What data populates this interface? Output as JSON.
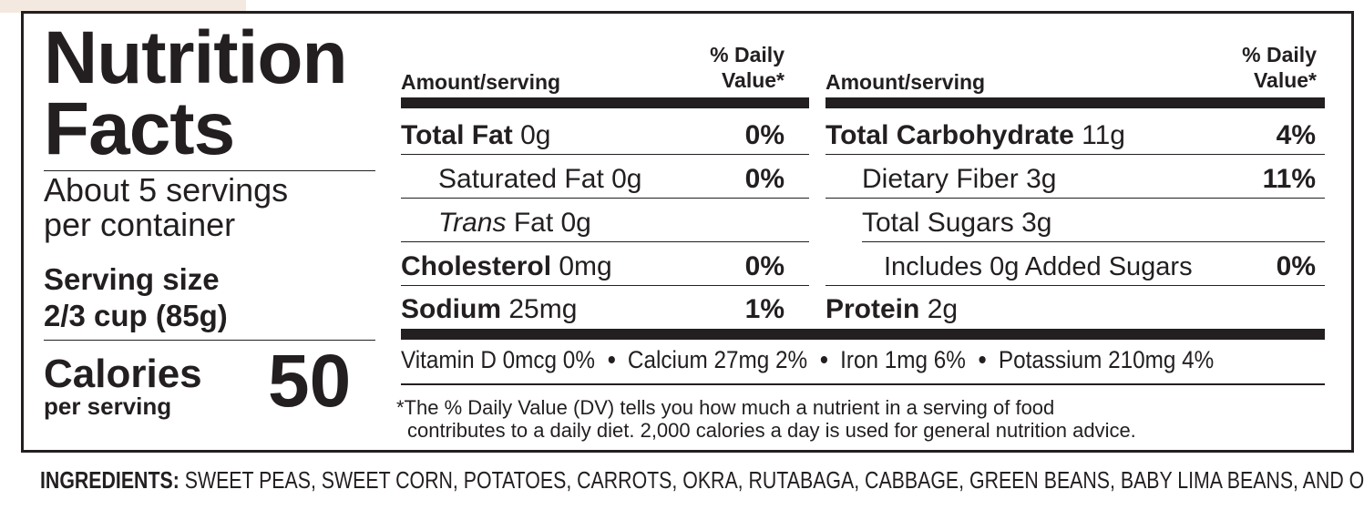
{
  "label": {
    "title_line1": "Nutrition",
    "title_line2": "Facts",
    "servings_line1": "About 5 servings",
    "servings_line2": "per container",
    "serving_size_label": "Serving size",
    "serving_size_value": "2/3 cup (85g)",
    "calories_label": "Calories",
    "calories_sub": "per serving",
    "calories_value": "50"
  },
  "left_table": {
    "amount_header": "Amount/serving",
    "dv_header_line1": "% Daily",
    "dv_header_line2": "Value*",
    "rows": [
      {
        "name": "Total Fat",
        "amount": "0g",
        "dv": "0%"
      },
      {
        "name": "Saturated Fat",
        "amount": "0g",
        "dv": "0%"
      },
      {
        "name": "Trans",
        "amount": "Fat 0g",
        "dv": ""
      },
      {
        "name": "Cholesterol",
        "amount": "0mg",
        "dv": "0%"
      },
      {
        "name": "Sodium",
        "amount": "25mg",
        "dv": "1%"
      }
    ]
  },
  "right_table": {
    "amount_header": "Amount/serving",
    "dv_header_line1": "% Daily",
    "dv_header_line2": "Value*",
    "rows": [
      {
        "name": "Total Carbohydrate",
        "amount": "11g",
        "dv": "4%"
      },
      {
        "name": "Dietary Fiber",
        "amount": "3g",
        "dv": "11%"
      },
      {
        "name": "Total Sugars",
        "amount": "3g",
        "dv": ""
      },
      {
        "name": "Includes 0g Added Sugars",
        "amount": "",
        "dv": "0%"
      },
      {
        "name": "Protein",
        "amount": "2g",
        "dv": ""
      }
    ]
  },
  "vitamins": [
    "Vitamin D 0mcg 0%",
    "Calcium 27mg 2%",
    "Iron 1mg 6%",
    "Potassium 210mg 4%"
  ],
  "footnote_line1": "*The % Daily Value (DV) tells you how much a nutrient in a serving of food",
  "footnote_line2": "contributes to a daily diet. 2,000 calories a day is used for general nutrition advice.",
  "ingredients_label": "INGREDIENTS:",
  "ingredients_text": "SWEET PEAS, SWEET CORN, POTATOES, CARROTS, OKRA, RUTABAGA, CABBAGE, GREEN BEANS, BABY LIMA BEANS, AND ONIONS."
}
